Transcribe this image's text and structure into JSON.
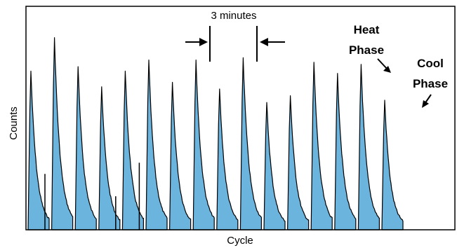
{
  "chart_data": {
    "type": "area",
    "xlabel": "Cycle",
    "ylabel": "Counts",
    "grid": false,
    "fill_color": "#6ab4de",
    "line_color": "#000000",
    "cycles": [
      {
        "peak": 0.71,
        "spike": 0.25
      },
      {
        "peak": 0.86,
        "spike": 0.0
      },
      {
        "peak": 0.73,
        "spike": 0.0
      },
      {
        "peak": 0.64,
        "spike": 0.15
      },
      {
        "peak": 0.71,
        "spike": 0.3
      },
      {
        "peak": 0.76,
        "spike": 0.0
      },
      {
        "peak": 0.66,
        "spike": 0.0
      },
      {
        "peak": 0.76,
        "spike": 0.0
      },
      {
        "peak": 0.63,
        "spike": 0.0
      },
      {
        "peak": 0.77,
        "spike": 0.0
      },
      {
        "peak": 0.57,
        "spike": 0.0
      },
      {
        "peak": 0.6,
        "spike": 0.0
      },
      {
        "peak": 0.75,
        "spike": 0.0
      },
      {
        "peak": 0.7,
        "spike": 0.0
      },
      {
        "peak": 0.74,
        "spike": 0.0
      },
      {
        "peak": 0.58,
        "spike": 0.0
      }
    ],
    "annotations": {
      "interval_label": "3 minutes",
      "heat_line1": "Heat",
      "heat_line2": "Phase",
      "cool_line1": "Cool",
      "cool_line2": "Phase"
    }
  }
}
